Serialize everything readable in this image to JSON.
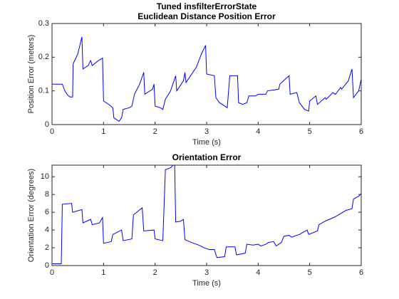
{
  "chart_data": [
    {
      "type": "line",
      "title": "Tuned insfilterErrorState",
      "subtitle": "Euclidean Distance Position Error",
      "xlabel": "Time (s)",
      "ylabel": "Position Error (meters)",
      "xlim": [
        0,
        6
      ],
      "xticks": [
        0,
        1,
        2,
        3,
        4,
        5,
        6
      ],
      "ylim": [
        0,
        0.3
      ],
      "yticks": [
        0,
        0.1,
        0.2,
        0.3
      ],
      "x": [
        0,
        0.2,
        0.25,
        0.3,
        0.35,
        0.4,
        0.41,
        0.5,
        0.58,
        0.6,
        0.7,
        0.75,
        0.78,
        0.9,
        0.98,
        1.0,
        1.1,
        1.18,
        1.2,
        1.3,
        1.35,
        1.38,
        1.5,
        1.55,
        1.6,
        1.7,
        1.78,
        1.8,
        1.95,
        1.98,
        2.0,
        2.1,
        2.15,
        2.2,
        2.3,
        2.4,
        2.42,
        2.55,
        2.58,
        2.6,
        2.8,
        2.9,
        2.98,
        3.0,
        3.15,
        3.18,
        3.25,
        3.35,
        3.4,
        3.45,
        3.6,
        3.62,
        3.7,
        3.78,
        3.82,
        3.95,
        4.0,
        4.15,
        4.18,
        4.4,
        4.42,
        4.6,
        4.62,
        4.75,
        4.8,
        4.9,
        4.98,
        5.0,
        5.12,
        5.15,
        5.3,
        5.32,
        5.45,
        5.5,
        5.6,
        5.62,
        5.75,
        5.82,
        5.85,
        5.95,
        6.0
      ],
      "series": [
        {
          "color": "#0000ff",
          "values": [
            0.12,
            0.12,
            0.1,
            0.088,
            0.082,
            0.082,
            0.18,
            0.21,
            0.26,
            0.165,
            0.175,
            0.19,
            0.175,
            0.19,
            0.197,
            0.07,
            0.06,
            0.05,
            0.02,
            0.01,
            0.02,
            0.045,
            0.05,
            0.055,
            0.09,
            0.12,
            0.155,
            0.09,
            0.105,
            0.12,
            0.055,
            0.05,
            0.045,
            0.075,
            0.1,
            0.145,
            0.1,
            0.13,
            0.155,
            0.125,
            0.17,
            0.21,
            0.235,
            0.15,
            0.145,
            0.08,
            0.065,
            0.055,
            0.05,
            0.145,
            0.145,
            0.065,
            0.06,
            0.065,
            0.085,
            0.085,
            0.09,
            0.09,
            0.1,
            0.105,
            0.12,
            0.145,
            0.09,
            0.095,
            0.065,
            0.045,
            0.04,
            0.07,
            0.085,
            0.06,
            0.08,
            0.075,
            0.095,
            0.09,
            0.11,
            0.105,
            0.13,
            0.165,
            0.08,
            0.1,
            0.135
          ]
        }
      ]
    },
    {
      "type": "line",
      "title": "Orientation Error",
      "xlabel": "Time (s)",
      "ylabel": "Orientation Error (degrees)",
      "xlim": [
        0,
        6
      ],
      "xticks": [
        0,
        1,
        2,
        3,
        4,
        5,
        6
      ],
      "ylim": [
        0,
        11.3
      ],
      "yticks": [
        0,
        2,
        4,
        6,
        8,
        10
      ],
      "x": [
        0,
        0.18,
        0.2,
        0.38,
        0.4,
        0.58,
        0.6,
        0.75,
        0.78,
        0.92,
        0.98,
        1.0,
        1.15,
        1.18,
        1.35,
        1.38,
        1.55,
        1.58,
        1.75,
        1.78,
        1.98,
        2.0,
        2.15,
        2.2,
        2.3,
        2.35,
        2.38,
        2.4,
        2.5,
        2.55,
        2.58,
        2.75,
        2.85,
        2.95,
        3.05,
        3.15,
        3.2,
        3.35,
        3.38,
        3.55,
        3.58,
        3.75,
        3.78,
        3.9,
        4.0,
        4.05,
        4.15,
        4.2,
        4.3,
        4.35,
        4.45,
        4.5,
        4.6,
        4.65,
        4.8,
        4.95,
        4.98,
        5.15,
        5.18,
        5.3,
        5.5,
        5.7,
        5.82,
        5.85,
        5.95,
        6.0
      ],
      "series": [
        {
          "color": "#0000ff",
          "values": [
            0.2,
            0.2,
            6.9,
            7.0,
            6.0,
            6.3,
            4.8,
            5.2,
            4.6,
            4.8,
            5.4,
            2.5,
            2.7,
            3.5,
            4.0,
            2.8,
            3.0,
            5.7,
            6.5,
            3.9,
            4.0,
            3.0,
            2.8,
            10.8,
            11.0,
            11.3,
            11.3,
            4.9,
            5.0,
            5.2,
            2.9,
            2.5,
            2.3,
            2.0,
            1.8,
            1.8,
            0.9,
            1.0,
            2.1,
            2.1,
            1.2,
            1.4,
            2.4,
            2.3,
            2.4,
            2.2,
            2.4,
            2.6,
            2.7,
            2.2,
            2.6,
            3.3,
            3.4,
            3.2,
            3.5,
            4.0,
            3.5,
            3.9,
            4.6,
            5.0,
            5.5,
            6.2,
            6.4,
            7.5,
            7.8,
            8.1
          ]
        }
      ]
    }
  ]
}
